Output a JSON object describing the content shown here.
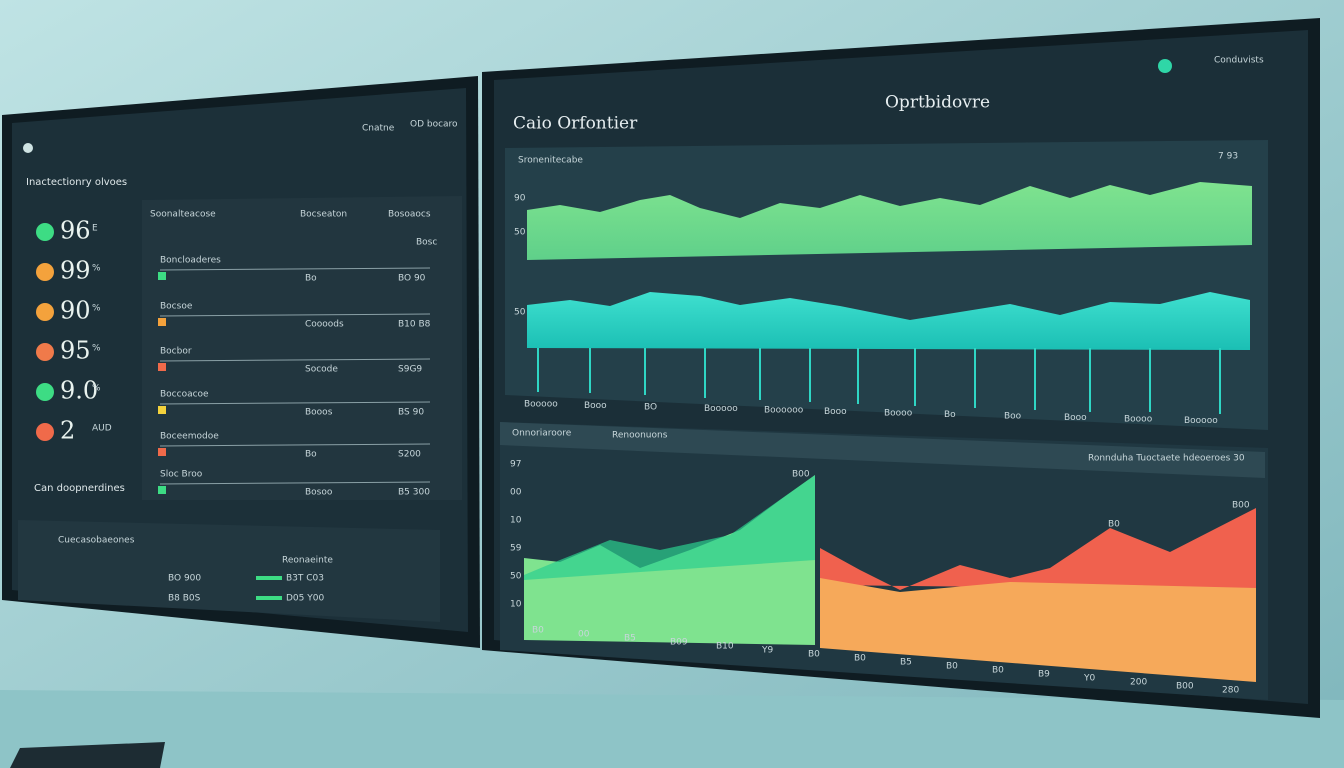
{
  "left_screen": {
    "header_links": [
      "Cnatne",
      "OD bocaro"
    ],
    "subtitle": "Inactectionry olvoes",
    "kpis": [
      {
        "value": "96",
        "unit": "E"
      },
      {
        "value": "99",
        "unit": "%"
      },
      {
        "value": "90",
        "unit": "%"
      },
      {
        "value": "95",
        "unit": "%"
      },
      {
        "value": "9.0",
        "unit": "%"
      },
      {
        "value": "2",
        "unit": "AUD"
      }
    ],
    "table_header": [
      "Soonalteacose",
      "Bocseaton",
      "Bosoaocs"
    ],
    "table_note": "Bosc",
    "table_rows": [
      [
        "Boncloaderes",
        "Bo",
        "BO 90"
      ],
      [
        "Bocsoe",
        "Coooods",
        "B10 B8"
      ],
      [
        "Bocbor",
        "Socode",
        "S9G9"
      ],
      [
        "Boccoacoe",
        "Booos",
        "BS 90"
      ],
      [
        "Boceemodoe",
        "Bo",
        "S200"
      ],
      [
        "Sloc Broo",
        "Bosoo",
        "B5 300"
      ]
    ],
    "footer_label": "Can doopnerdines",
    "bottom_title": "Cuecasobaeones",
    "bottom_header": "Reonaeinte",
    "bottom_rows": [
      [
        "BO 900",
        "B3T C03"
      ],
      [
        "B8 B0S",
        "D05 Y00"
      ]
    ]
  },
  "right_screen": {
    "corner": "Conduvists",
    "brand": "Oprtbidovre",
    "title": "Caio Orfontier",
    "top_chart": {
      "title": "Sronenitecabe",
      "value": "7 93",
      "y_labels": [
        "90",
        "50",
        "50"
      ],
      "x_labels": [
        "Booooo",
        "Booo",
        "BO",
        "Booooo",
        "Boooooo",
        "Booo",
        "Boooo",
        "Bo",
        "Boo",
        "Booo",
        "Boooo",
        "Booooo"
      ]
    },
    "bottom_chart": {
      "tabs": [
        "Onnoriaroore",
        "Renoonuons"
      ],
      "legend": "Ronnduha Tuoctaete hdeoeroes 30",
      "y_labels": [
        "97",
        "00",
        "10",
        "59",
        "50",
        "10"
      ],
      "x_labels": [
        "B0",
        "00",
        "B5",
        "B09",
        "B10",
        "Y9",
        "B0",
        "B0",
        "B5",
        "B0",
        "B0",
        "B9",
        "Y0",
        "200",
        "B00",
        "280"
      ],
      "peak_labels": [
        "B00",
        "B0",
        "B00"
      ]
    }
  }
}
